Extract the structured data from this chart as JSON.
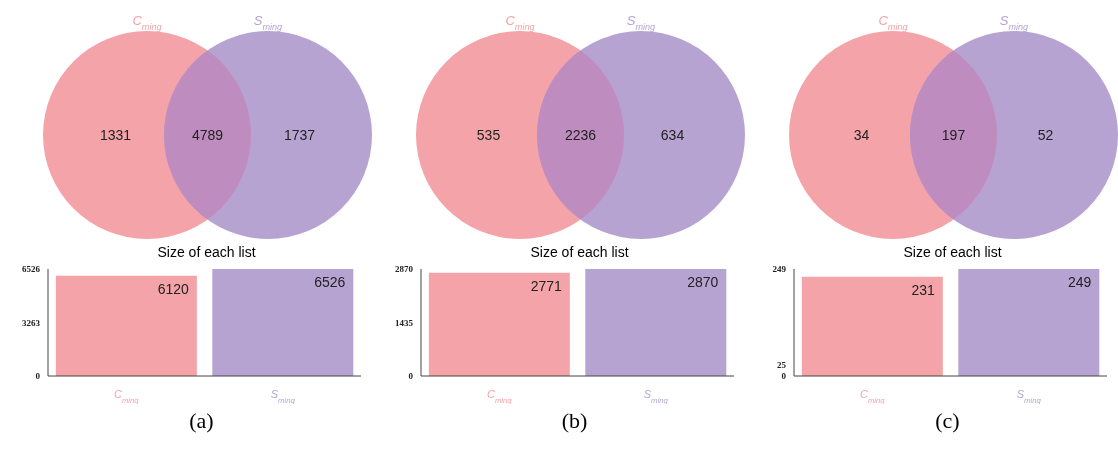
{
  "chart_data": [
    {
      "type": "other",
      "categories": [
        null,
        null,
        null
      ],
      "values": [
        1331,
        4789,
        1737
      ],
      "data_labels": true,
      "colors": [
        "#f4a3a8",
        "#bf8cc0",
        "#b7a3d2"
      ],
      "annotations": [
        "C$_{ming}$",
        "S$_{ming}$"
      ]
    },
    {
      "type": "bar",
      "title": "Size of each list",
      "categories": [
        "C$_{ming}$",
        "S$_{ming}$"
      ],
      "values": [
        6120,
        6526
      ],
      "colors": [
        "#f4a3a8",
        "#b7a3d2"
      ],
      "ylim": [
        0,
        6526
      ],
      "yticks": [
        0,
        3263,
        6526
      ],
      "data_labels": true,
      "annotations": [
        "(a)"
      ]
    },
    {
      "type": "other",
      "categories": [
        null,
        null,
        null
      ],
      "values": [
        535,
        2236,
        634
      ],
      "data_labels": true,
      "colors": [
        "#f4a3a8",
        "#bf8cc0",
        "#b7a3d2"
      ],
      "annotations": [
        "C$_{ming}$",
        "S$_{ming}$"
      ]
    },
    {
      "type": "bar",
      "title": "Size of each list",
      "categories": [
        "C$_{ming}$",
        "S$_{ming}$"
      ],
      "values": [
        2771,
        2870
      ],
      "colors": [
        "#f4a3a8",
        "#b7a3d2"
      ],
      "ylim": [
        0,
        2870
      ],
      "yticks": [
        0,
        1435,
        2870
      ],
      "data_labels": true,
      "annotations": [
        "(b)"
      ]
    },
    {
      "type": "other",
      "categories": [
        null,
        null,
        null
      ],
      "values": [
        34,
        197,
        52
      ],
      "data_labels": true,
      "colors": [
        "#f4a3a8",
        "#bf8cc0",
        "#b7a3d2"
      ],
      "annotations": [
        "C$_{ming}$",
        "S$_{ming}$"
      ]
    },
    {
      "type": "bar",
      "title": "Size of each list",
      "categories": [
        "C$_{ming}$",
        "S$_{ming}$"
      ],
      "values": [
        231,
        249
      ],
      "colors": [
        "#f4a3a8",
        "#b7a3d2"
      ],
      "ylim": [
        0,
        249
      ],
      "yticks": [
        0,
        25,
        249
      ],
      "data_labels": true,
      "annotations": [
        "(c)"
      ]
    }
  ]
}
